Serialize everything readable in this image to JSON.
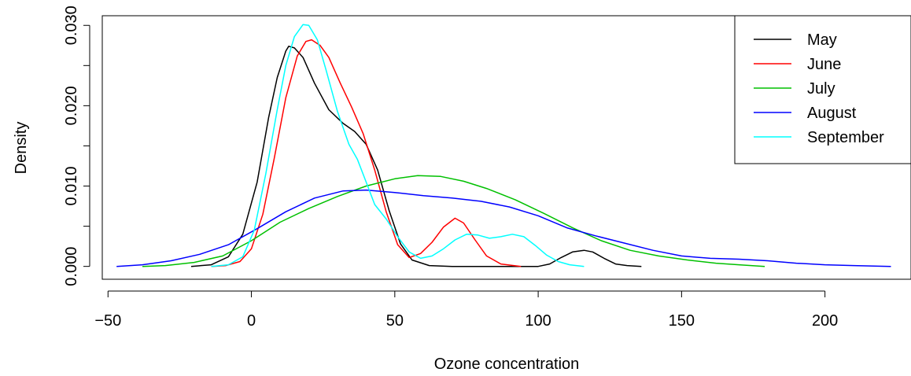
{
  "chart_data": {
    "type": "line",
    "title": "",
    "xlabel": "Ozone concentration",
    "ylabel": "Density",
    "xlim": [
      -52,
      230
    ],
    "ylim": [
      -0.0016,
      0.0312
    ],
    "x_ticks": [
      -50,
      0,
      50,
      100,
      150,
      200
    ],
    "x_tick_labels": [
      "−50",
      "0",
      "50",
      "100",
      "150",
      "200"
    ],
    "y_ticks": [
      0,
      0.005,
      0.01,
      0.015,
      0.02,
      0.025,
      0.03
    ],
    "y_tick_labels": [
      "0.000",
      "",
      "0.010",
      "",
      "0.020",
      "",
      "0.030"
    ],
    "grid": false,
    "legend_position": "top-right",
    "series": [
      {
        "name": "May",
        "color": "#000000",
        "points": [
          [
            -21,
            0.0
          ],
          [
            -14,
            0.0002
          ],
          [
            -8,
            0.0012
          ],
          [
            -3,
            0.004
          ],
          [
            2,
            0.0105
          ],
          [
            6,
            0.0185
          ],
          [
            9,
            0.0235
          ],
          [
            12,
            0.0268
          ],
          [
            13,
            0.0274
          ],
          [
            15,
            0.0272
          ],
          [
            18,
            0.026
          ],
          [
            22,
            0.0228
          ],
          [
            27,
            0.0195
          ],
          [
            32,
            0.0178
          ],
          [
            36,
            0.0168
          ],
          [
            40,
            0.0152
          ],
          [
            44,
            0.012
          ],
          [
            48,
            0.007
          ],
          [
            52,
            0.0028
          ],
          [
            56,
            0.0008
          ],
          [
            62,
            0.0001
          ],
          [
            70,
            0.0
          ],
          [
            100,
            0.0
          ],
          [
            104,
            0.0003
          ],
          [
            108,
            0.0011
          ],
          [
            112,
            0.0018
          ],
          [
            116,
            0.002
          ],
          [
            119,
            0.0018
          ],
          [
            123,
            0.001
          ],
          [
            127,
            0.0003
          ],
          [
            131,
            0.0001
          ],
          [
            136,
            0.0
          ]
        ]
      },
      {
        "name": "June",
        "color": "#ff0000",
        "points": [
          [
            -14,
            0.0
          ],
          [
            -9,
            0.0001
          ],
          [
            -4,
            0.0006
          ],
          [
            0,
            0.0022
          ],
          [
            4,
            0.0065
          ],
          [
            8,
            0.0135
          ],
          [
            12,
            0.021
          ],
          [
            16,
            0.0262
          ],
          [
            19,
            0.028
          ],
          [
            21,
            0.0282
          ],
          [
            24,
            0.0275
          ],
          [
            27,
            0.026
          ],
          [
            31,
            0.0228
          ],
          [
            35,
            0.0198
          ],
          [
            39,
            0.0165
          ],
          [
            43,
            0.012
          ],
          [
            47,
            0.0068
          ],
          [
            51,
            0.0027
          ],
          [
            55,
            0.0011
          ],
          [
            59,
            0.0016
          ],
          [
            63,
            0.003
          ],
          [
            67,
            0.0049
          ],
          [
            71,
            0.006
          ],
          [
            74,
            0.0054
          ],
          [
            78,
            0.0033
          ],
          [
            82,
            0.0013
          ],
          [
            87,
            0.0003
          ],
          [
            94,
            0.0
          ]
        ]
      },
      {
        "name": "July",
        "color": "#00c000",
        "points": [
          [
            -38,
            0.0
          ],
          [
            -30,
            0.0001
          ],
          [
            -20,
            0.0005
          ],
          [
            -10,
            0.0013
          ],
          [
            0,
            0.0032
          ],
          [
            10,
            0.0055
          ],
          [
            20,
            0.0072
          ],
          [
            30,
            0.0087
          ],
          [
            40,
            0.01
          ],
          [
            50,
            0.0109
          ],
          [
            58,
            0.0113
          ],
          [
            66,
            0.0112
          ],
          [
            74,
            0.0106
          ],
          [
            82,
            0.0097
          ],
          [
            92,
            0.0083
          ],
          [
            102,
            0.0066
          ],
          [
            112,
            0.0048
          ],
          [
            122,
            0.0032
          ],
          [
            132,
            0.002
          ],
          [
            142,
            0.0013
          ],
          [
            152,
            0.0008
          ],
          [
            162,
            0.0004
          ],
          [
            170,
            0.0002
          ],
          [
            179,
            0.0
          ]
        ]
      },
      {
        "name": "August",
        "color": "#0000ff",
        "points": [
          [
            -47,
            0.0
          ],
          [
            -38,
            0.0002
          ],
          [
            -28,
            0.0007
          ],
          [
            -18,
            0.0015
          ],
          [
            -8,
            0.0027
          ],
          [
            2,
            0.0047
          ],
          [
            12,
            0.0068
          ],
          [
            22,
            0.0085
          ],
          [
            32,
            0.0094
          ],
          [
            40,
            0.0095
          ],
          [
            50,
            0.0092
          ],
          [
            60,
            0.0088
          ],
          [
            70,
            0.0085
          ],
          [
            80,
            0.0081
          ],
          [
            90,
            0.0074
          ],
          [
            100,
            0.0063
          ],
          [
            110,
            0.0048
          ],
          [
            120,
            0.0038
          ],
          [
            130,
            0.0029
          ],
          [
            140,
            0.002
          ],
          [
            150,
            0.0013
          ],
          [
            160,
            0.001
          ],
          [
            170,
            0.0009
          ],
          [
            180,
            0.0007
          ],
          [
            190,
            0.0004
          ],
          [
            200,
            0.0002
          ],
          [
            210,
            0.0001
          ],
          [
            223,
            0.0
          ]
        ]
      },
      {
        "name": "September",
        "color": "#00ffff",
        "points": [
          [
            -14,
            0.0
          ],
          [
            -8,
            0.0002
          ],
          [
            -3,
            0.0012
          ],
          [
            1,
            0.0045
          ],
          [
            5,
            0.0115
          ],
          [
            9,
            0.0195
          ],
          [
            12,
            0.025
          ],
          [
            15,
            0.0286
          ],
          [
            18,
            0.0301
          ],
          [
            20,
            0.03
          ],
          [
            23,
            0.0282
          ],
          [
            26,
            0.0245
          ],
          [
            30,
            0.0193
          ],
          [
            34,
            0.0152
          ],
          [
            37,
            0.0133
          ],
          [
            40,
            0.0105
          ],
          [
            43,
            0.0077
          ],
          [
            47,
            0.0059
          ],
          [
            51,
            0.0037
          ],
          [
            55,
            0.0018
          ],
          [
            59,
            0.001
          ],
          [
            63,
            0.0013
          ],
          [
            67,
            0.0022
          ],
          [
            71,
            0.0033
          ],
          [
            75,
            0.004
          ],
          [
            79,
            0.0039
          ],
          [
            83,
            0.0035
          ],
          [
            87,
            0.0037
          ],
          [
            91,
            0.004
          ],
          [
            95,
            0.0037
          ],
          [
            99,
            0.0026
          ],
          [
            103,
            0.0014
          ],
          [
            107,
            0.0006
          ],
          [
            111,
            0.0002
          ],
          [
            116,
            0.0
          ]
        ]
      }
    ]
  }
}
